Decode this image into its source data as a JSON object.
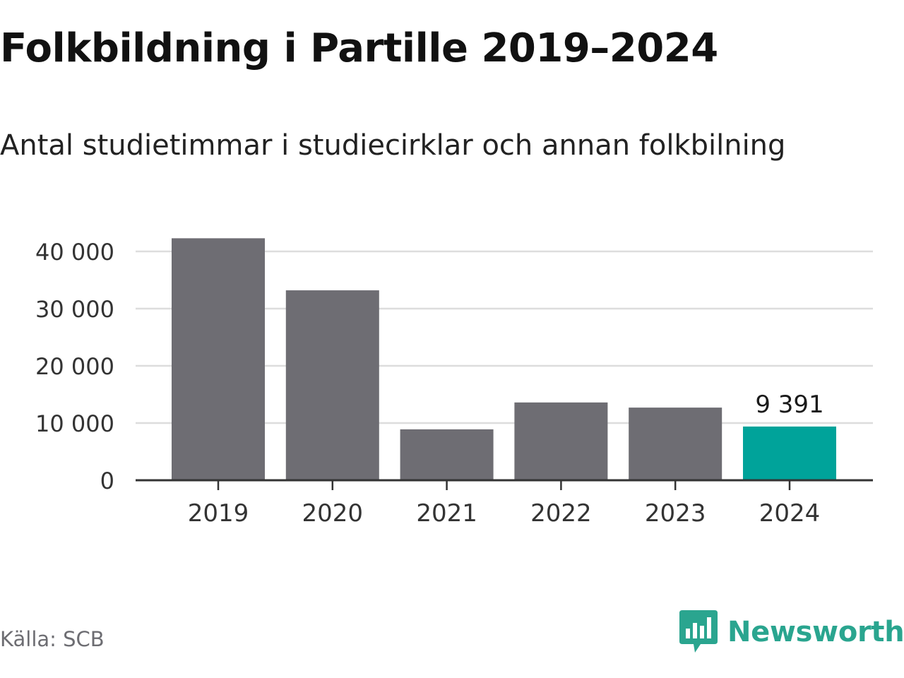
{
  "chart_data": {
    "type": "bar",
    "title": "Folkbildning i Partille 2019–2024",
    "subtitle": "Antal studietimmar i studiecirklar och annan folkbilning",
    "categories": [
      "2019",
      "2020",
      "2021",
      "2022",
      "2023",
      "2024"
    ],
    "values": [
      42300,
      33200,
      8900,
      13600,
      12700,
      9391
    ],
    "highlight": {
      "index": 5,
      "label": "9 391"
    },
    "ylim": [
      0,
      40000
    ],
    "yticks": [
      0,
      10000,
      20000,
      30000,
      40000
    ],
    "ytick_labels": [
      "0",
      "10 000",
      "20 000",
      "30 000",
      "40 000"
    ],
    "xlabel": "",
    "ylabel": "",
    "grid": true,
    "colors": {
      "bar": "#6e6d73",
      "highlight": "#00a39a",
      "grid": "#dddddd",
      "axis": "#333333"
    }
  },
  "footer": {
    "source": "Källa: SCB",
    "brand": "Newsworthy",
    "brand_icon": "newsworthy-logo-icon",
    "brand_color": "#2aa58f"
  }
}
